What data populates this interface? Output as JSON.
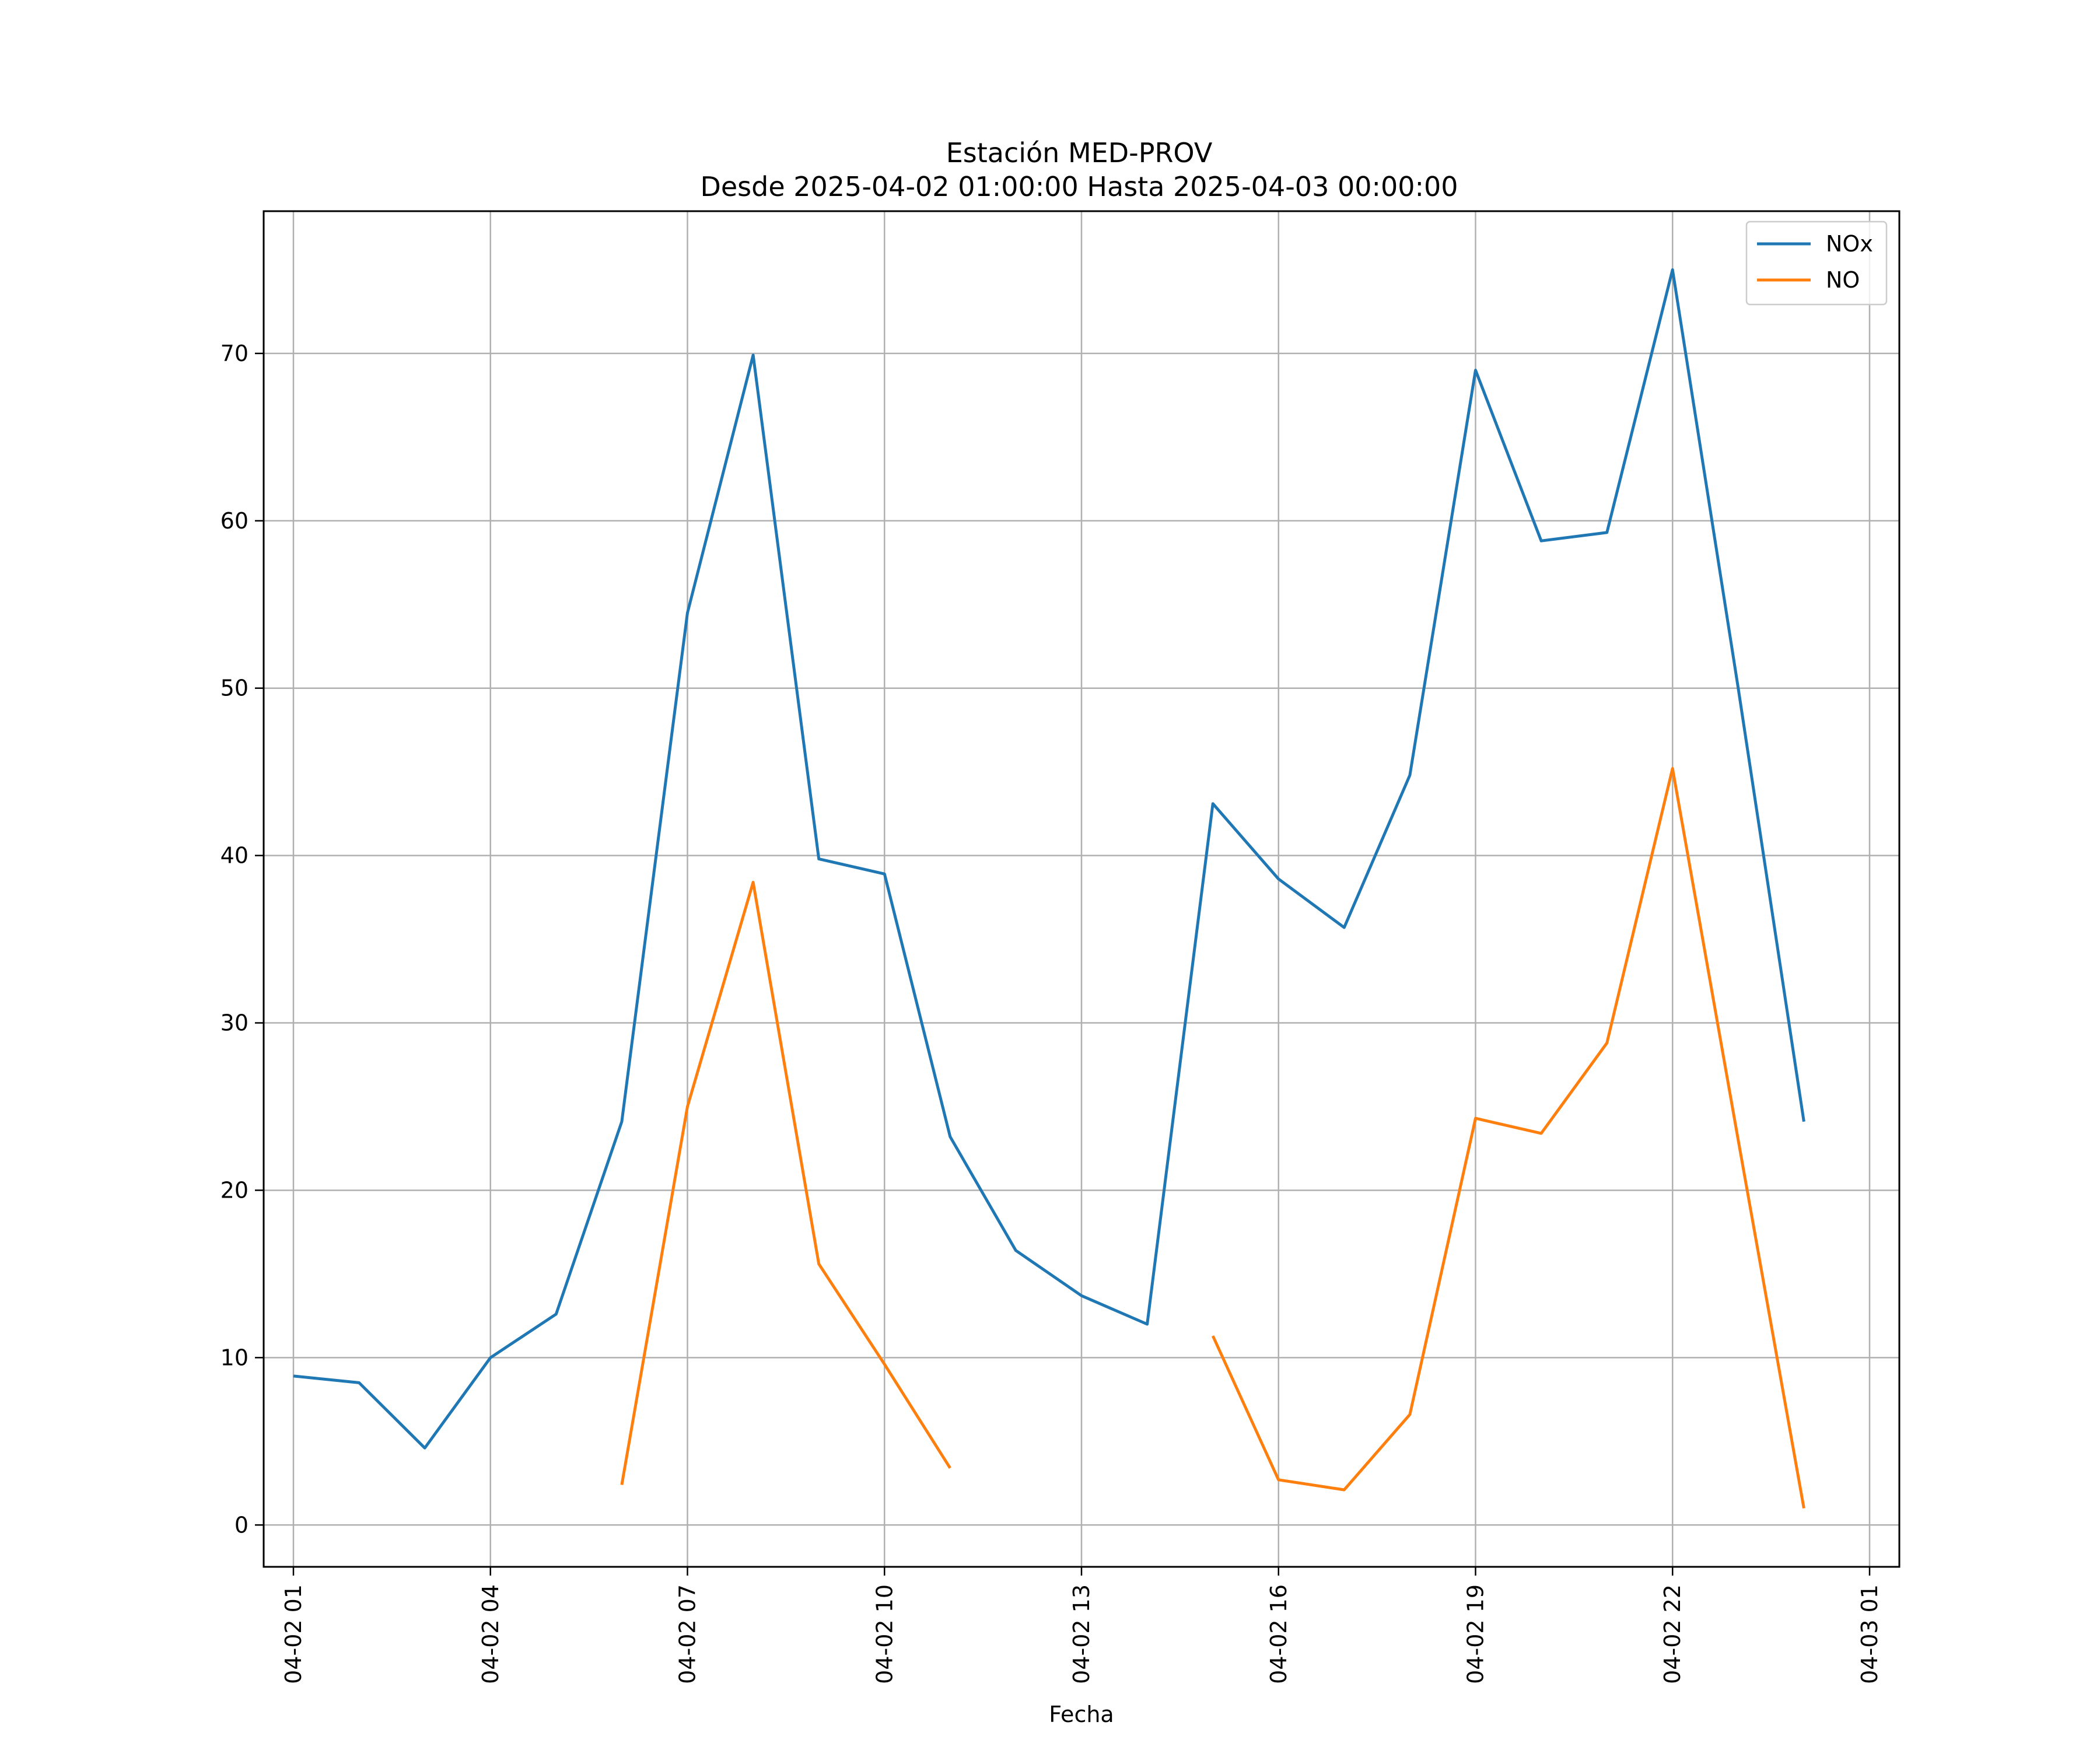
{
  "chart_data": {
    "type": "line",
    "title": "Estación MED-PROV",
    "subtitle": "Desde 2025-04-02 01:00:00 Hasta 2025-04-03 00:00:00",
    "xlabel": "Fecha",
    "ylabel": "",
    "x": [
      "2025-04-02 01:00",
      "2025-04-02 02:00",
      "2025-04-02 03:00",
      "2025-04-02 04:00",
      "2025-04-02 05:00",
      "2025-04-02 06:00",
      "2025-04-02 07:00",
      "2025-04-02 08:00",
      "2025-04-02 09:00",
      "2025-04-02 10:00",
      "2025-04-02 11:00",
      "2025-04-02 12:00",
      "2025-04-02 13:00",
      "2025-04-02 14:00",
      "2025-04-02 15:00",
      "2025-04-02 16:00",
      "2025-04-02 17:00",
      "2025-04-02 18:00",
      "2025-04-02 19:00",
      "2025-04-02 20:00",
      "2025-04-02 21:00",
      "2025-04-02 22:00",
      "2025-04-02 23:00",
      "2025-04-03 00:00"
    ],
    "x_tick_labels": [
      "04-02 01",
      "04-02 04",
      "04-02 07",
      "04-02 10",
      "04-02 13",
      "04-02 16",
      "04-02 19",
      "04-02 22",
      "04-03 01"
    ],
    "y_ticks": [
      0,
      10,
      20,
      30,
      40,
      50,
      60,
      70
    ],
    "ylim": [
      -2.5,
      78.5
    ],
    "grid": true,
    "legend_position": "top-right",
    "series": [
      {
        "name": "NOx",
        "color": "#1f77b4",
        "values": [
          8.9,
          8.5,
          4.6,
          10.0,
          12.6,
          24.1,
          54.5,
          69.9,
          39.8,
          38.9,
          23.2,
          16.4,
          13.7,
          12.0,
          43.1,
          38.6,
          35.7,
          44.8,
          69.0,
          58.8,
          59.3,
          75.0,
          50.0,
          24.1
        ]
      },
      {
        "name": "NO",
        "color": "#ff7f0e",
        "values": [
          null,
          null,
          null,
          null,
          null,
          2.4,
          25.0,
          38.4,
          15.6,
          9.6,
          3.4,
          null,
          null,
          null,
          11.3,
          2.7,
          2.1,
          6.6,
          24.3,
          23.4,
          28.8,
          45.2,
          23.0,
          1.0
        ]
      }
    ]
  }
}
